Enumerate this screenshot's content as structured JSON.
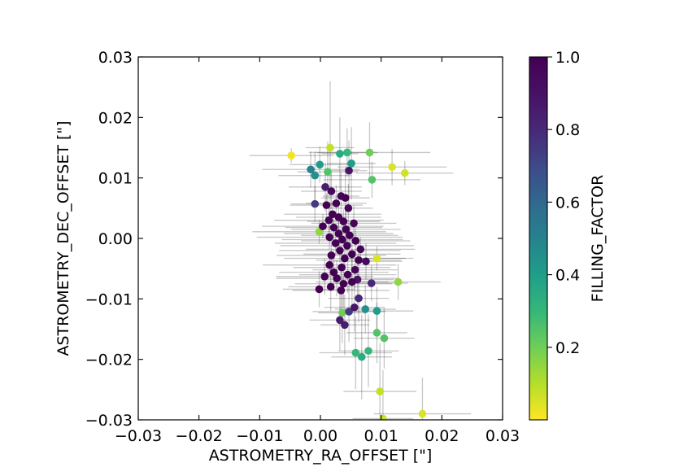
{
  "chart_data": {
    "type": "scatter",
    "title": "",
    "xlabel": "ASTROMETRY_RA_OFFSET [\"]",
    "ylabel": "ASTROMETRY_DEC_OFFSET [\"]",
    "xlim": [
      -0.03,
      0.03
    ],
    "ylim": [
      -0.03,
      0.03
    ],
    "x_ticks": [
      -0.03,
      -0.02,
      -0.01,
      0.0,
      0.01,
      0.02,
      0.03
    ],
    "x_tick_labels": [
      "−0.03",
      "−0.02",
      "−0.01",
      "0.00",
      "0.01",
      "0.02",
      "0.03"
    ],
    "y_ticks": [
      -0.03,
      -0.02,
      -0.01,
      0.0,
      0.01,
      0.02,
      0.03
    ],
    "y_tick_labels": [
      "−0.03",
      "−0.02",
      "−0.01",
      "0.00",
      "0.01",
      "0.02",
      "0.03"
    ],
    "grid": false,
    "error_bars": true,
    "colorbar": {
      "label": "FILLING_FACTOR",
      "colormap": "viridis",
      "range": [
        0.0,
        1.0
      ],
      "ticks": [
        0.2,
        0.4,
        0.6,
        0.8,
        1.0
      ],
      "tick_labels": [
        "0.2",
        "0.4",
        "0.6",
        "0.8",
        "1.0"
      ]
    },
    "series": [
      {
        "points": [
          [
            -0.0048,
            0.0137,
            0.0069,
            0.0012,
            0.02
          ],
          [
            0.0016,
            0.015,
            0.004,
            0.011,
            0.08
          ],
          [
            0.0032,
            0.014,
            0.003,
            0.006,
            0.35
          ],
          [
            0.0044,
            0.0142,
            0.005,
            0.004,
            0.3
          ],
          [
            0.0081,
            0.0142,
            0.01,
            0.005,
            0.2
          ],
          [
            0.0118,
            0.0118,
            0.009,
            0.003,
            0.05
          ],
          [
            0.0139,
            0.0108,
            0.008,
            0.002,
            0.06
          ],
          [
            -0.0016,
            0.0114,
            0.008,
            0.003,
            0.5
          ],
          [
            -0.0001,
            0.0122,
            0.005,
            0.003,
            0.4
          ],
          [
            -0.0009,
            0.0104,
            0.006,
            0.004,
            0.45
          ],
          [
            0.0012,
            0.011,
            0.005,
            0.005,
            0.25
          ],
          [
            0.0051,
            0.0124,
            0.004,
            0.006,
            0.4
          ],
          [
            0.0047,
            0.0112,
            0.003,
            0.005,
            0.88
          ],
          [
            0.0085,
            0.0097,
            0.008,
            0.003,
            0.25
          ],
          [
            0.0008,
            0.0085,
            0.006,
            0.004,
            0.85
          ],
          [
            0.0018,
            0.0078,
            0.005,
            0.003,
            0.95
          ],
          [
            0.0041,
            0.0067,
            0.004,
            0.005,
            1.0
          ],
          [
            0.0034,
            0.007,
            0.003,
            0.004,
            0.98
          ],
          [
            -0.0009,
            0.0057,
            0.004,
            0.003,
            0.75
          ],
          [
            0.001,
            0.0055,
            0.006,
            0.002,
            1.0
          ],
          [
            0.0026,
            0.0058,
            0.005,
            0.003,
            1.0
          ],
          [
            0.0046,
            0.005,
            0.004,
            0.004,
            0.95
          ],
          [
            0.002,
            0.004,
            0.008,
            0.002,
            1.0
          ],
          [
            0.003,
            0.0035,
            0.007,
            0.003,
            1.0
          ],
          [
            0.0014,
            0.003,
            0.009,
            0.002,
            0.98
          ],
          [
            0.0038,
            0.0028,
            0.006,
            0.002,
            1.0
          ],
          [
            0.0055,
            0.0025,
            0.007,
            0.003,
            0.98
          ],
          [
            0.0004,
            0.002,
            0.01,
            0.002,
            1.0
          ],
          [
            0.0022,
            0.0018,
            0.008,
            0.002,
            1.0
          ],
          [
            0.0042,
            0.0015,
            0.009,
            0.003,
            1.0
          ],
          [
            -0.0002,
            0.0011,
            0.011,
            0.002,
            0.15
          ],
          [
            0.003,
            0.0008,
            0.009,
            0.002,
            1.0
          ],
          [
            0.0048,
            0.0005,
            0.008,
            0.002,
            1.0
          ],
          [
            0.0015,
            0.0002,
            0.012,
            0.002,
            1.0
          ],
          [
            0.0036,
            -0.0002,
            0.01,
            0.002,
            1.0
          ],
          [
            0.0058,
            -0.0004,
            0.009,
            0.002,
            1.0
          ],
          [
            0.0025,
            -0.0008,
            0.01,
            0.002,
            1.0
          ],
          [
            0.0044,
            -0.0012,
            0.011,
            0.002,
            1.0
          ],
          [
            0.0066,
            -0.0018,
            0.009,
            0.002,
            0.98
          ],
          [
            0.0032,
            -0.002,
            0.01,
            0.002,
            1.0
          ],
          [
            0.0052,
            -0.0026,
            0.008,
            0.003,
            1.0
          ],
          [
            0.0018,
            -0.0028,
            0.009,
            0.003,
            1.0
          ],
          [
            0.004,
            -0.0033,
            0.01,
            0.002,
            1.0
          ],
          [
            0.0063,
            -0.0036,
            0.007,
            0.003,
            1.0
          ],
          [
            0.0093,
            -0.0033,
            0.006,
            0.002,
            0.05
          ],
          [
            0.0075,
            -0.0038,
            0.006,
            0.003,
            0.95
          ],
          [
            0.0015,
            -0.0044,
            0.011,
            0.002,
            1.0
          ],
          [
            0.0035,
            -0.0048,
            0.008,
            0.003,
            1.0
          ],
          [
            0.0057,
            -0.0052,
            0.007,
            0.003,
            0.98
          ],
          [
            0.0022,
            -0.0056,
            0.009,
            0.003,
            1.0
          ],
          [
            0.0045,
            -0.006,
            0.008,
            0.003,
            1.0
          ],
          [
            0.0007,
            -0.0063,
            0.008,
            0.003,
            1.0
          ],
          [
            0.0027,
            -0.0066,
            0.01,
            0.003,
            1.0
          ],
          [
            0.0061,
            -0.0068,
            0.006,
            0.004,
            0.9
          ],
          [
            0.0052,
            -0.0072,
            0.006,
            0.004,
            1.0
          ],
          [
            0.0084,
            -0.0074,
            0.006,
            0.003,
            0.8
          ],
          [
            0.0128,
            -0.0072,
            0.007,
            0.003,
            0.15
          ],
          [
            0.0038,
            -0.0075,
            0.008,
            0.004,
            1.0
          ],
          [
            0.0017,
            -0.008,
            0.007,
            0.004,
            1.0
          ],
          [
            -0.0002,
            -0.0084,
            0.006,
            0.003,
            1.0
          ],
          [
            0.0034,
            -0.0086,
            0.008,
            0.004,
            1.0
          ],
          [
            0.0063,
            -0.0099,
            0.005,
            0.004,
            0.8
          ],
          [
            0.0056,
            -0.0114,
            0.005,
            0.004,
            0.88
          ],
          [
            0.0074,
            -0.0117,
            0.005,
            0.004,
            0.45
          ],
          [
            0.0093,
            -0.012,
            0.006,
            0.004,
            0.4
          ],
          [
            0.0047,
            -0.0121,
            0.006,
            0.005,
            0.75
          ],
          [
            0.0036,
            -0.0123,
            0.004,
            0.005,
            0.2
          ],
          [
            0.0032,
            -0.0135,
            0.005,
            0.005,
            0.85
          ],
          [
            0.004,
            -0.0143,
            0.004,
            0.005,
            0.85
          ],
          [
            0.0093,
            -0.0156,
            0.005,
            0.005,
            0.25
          ],
          [
            0.0105,
            -0.0165,
            0.005,
            0.005,
            0.25
          ],
          [
            0.0079,
            -0.0186,
            0.005,
            0.006,
            0.3
          ],
          [
            0.0058,
            -0.0189,
            0.006,
            0.006,
            0.3
          ],
          [
            0.0068,
            -0.0196,
            0.005,
            0.007,
            0.35
          ],
          [
            0.0098,
            -0.0253,
            0.006,
            0.008,
            0.08
          ],
          [
            0.0103,
            -0.0298,
            0.005,
            0.008,
            0.08
          ],
          [
            0.0168,
            -0.029,
            0.008,
            0.006,
            0.05
          ]
        ]
      }
    ]
  }
}
